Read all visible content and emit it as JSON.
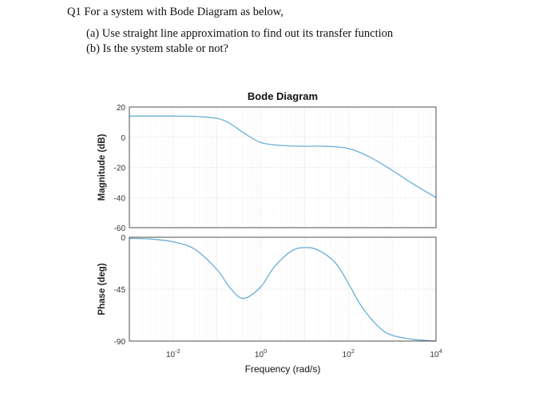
{
  "question": {
    "heading": "Q1 For a system with Bode Diagram as below,",
    "part_a": "(a) Use straight line approximation to find out its transfer function",
    "part_b": "(b) Is the system stable or not?"
  },
  "colors": {
    "curve": "#6aaed6",
    "axes": "#262626",
    "grid": "#dcdcdc",
    "minor_grid": "#ececec",
    "plot_bg": "#ffffff"
  },
  "chart_data": {
    "type": "line",
    "title": "Bode Diagram",
    "xlabel": "Frequency (rad/s)",
    "x_scale": "log",
    "xlim": [
      0.001,
      10000
    ],
    "x_ticks": [
      {
        "value": 0.01,
        "base": "10",
        "exp": "-2"
      },
      {
        "value": 1,
        "base": "10",
        "exp": "0"
      },
      {
        "value": 100,
        "base": "10",
        "exp": "2"
      },
      {
        "value": 10000,
        "base": "10",
        "exp": "4"
      }
    ],
    "grid": true,
    "panels": [
      {
        "name": "magnitude",
        "ylabel": "Magnitude (dB)",
        "ylim": [
          -60,
          20
        ],
        "y_ticks": [
          "20",
          "0",
          "-20",
          "-40",
          "-60"
        ],
        "y_tick_values": [
          20,
          0,
          -20,
          -40,
          -60
        ],
        "x": [
          0.001,
          0.01,
          0.03,
          0.1,
          0.2,
          0.4,
          1,
          3,
          10,
          30,
          100,
          300,
          1000,
          3000,
          10000
        ],
        "y": [
          14,
          14,
          13.8,
          12.5,
          9,
          3,
          -3.5,
          -5.5,
          -6,
          -6,
          -7.5,
          -13,
          -22,
          -31,
          -40
        ]
      },
      {
        "name": "phase",
        "ylabel": "Phase (deg)",
        "ylim": [
          -90,
          0
        ],
        "y_ticks": [
          "0",
          "-45",
          "-90"
        ],
        "y_tick_values": [
          0,
          -45,
          -90
        ],
        "x": [
          0.001,
          0.003,
          0.01,
          0.03,
          0.1,
          0.2,
          0.4,
          1,
          2,
          5,
          10,
          20,
          50,
          100,
          200,
          500,
          1000,
          3000,
          10000
        ],
        "y": [
          -1,
          -1.5,
          -4,
          -10,
          -28,
          -44,
          -53,
          -43,
          -26,
          -12,
          -9,
          -11,
          -22,
          -40,
          -60,
          -78,
          -85,
          -88.5,
          -90
        ]
      }
    ]
  }
}
